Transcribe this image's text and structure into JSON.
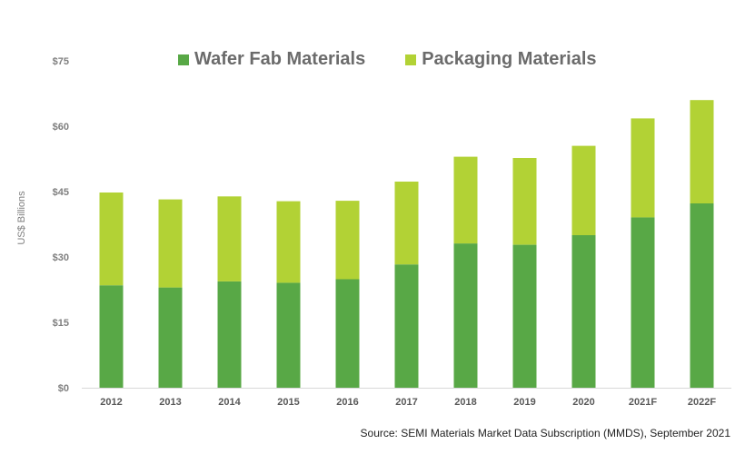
{
  "chart_data": {
    "type": "bar",
    "stacked": true,
    "categories": [
      "2012",
      "2013",
      "2014",
      "2015",
      "2016",
      "2017",
      "2018",
      "2019",
      "2020",
      "2021F",
      "2022F"
    ],
    "series": [
      {
        "name": "Wafer Fab Materials",
        "color": "#58a846",
        "values": [
          23.5,
          23.0,
          24.4,
          24.1,
          24.9,
          28.3,
          33.1,
          32.8,
          35.0,
          39.1,
          42.3
        ]
      },
      {
        "name": "Packaging Materials",
        "color": "#b2d235",
        "values": [
          21.3,
          20.2,
          19.5,
          18.7,
          18.0,
          19.0,
          19.9,
          19.9,
          20.5,
          22.7,
          23.7
        ]
      }
    ],
    "ylabel": "US$ Billions",
    "ylim": [
      0,
      75
    ],
    "yticks": [
      "$0",
      "$15",
      "$30",
      "$45",
      "$60",
      "$75"
    ],
    "legend_position": "top",
    "grid": false
  },
  "source_note": "Source: SEMI Materials Market Data Subscription (MMDS), September 2021"
}
